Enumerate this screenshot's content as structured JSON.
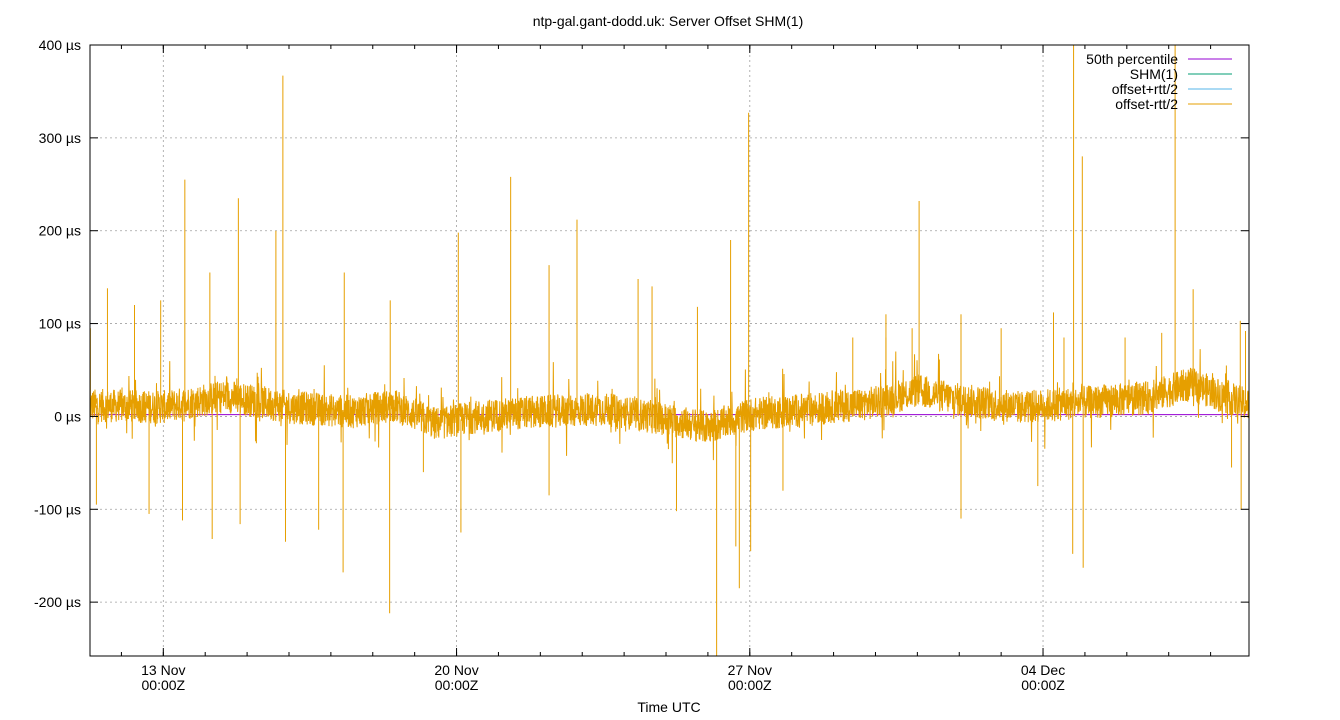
{
  "chart_data": {
    "type": "line",
    "title": "ntp-gal.gant-dodd.uk: Server Offset SHM(1)",
    "xlabel": "Time UTC",
    "ylabel": "",
    "y_unit": "µs",
    "ylim": [
      -258,
      400
    ],
    "yticks": [
      400,
      300,
      200,
      100,
      0,
      -100,
      -200
    ],
    "ytick_labels": [
      "400 µs",
      "300 µs",
      "200 µs",
      "100 µs",
      "0 µs",
      "-100 µs",
      "-200 µs"
    ],
    "xlim": [
      "2023-11-11T06:00Z",
      "2023-12-08T22:00Z"
    ],
    "xticks": [
      {
        "x": "2023-11-13T00:00Z",
        "label1": "13 Nov",
        "label2": "00:00Z"
      },
      {
        "x": "2023-11-20T00:00Z",
        "label1": "20 Nov",
        "label2": "00:00Z"
      },
      {
        "x": "2023-11-27T00:00Z",
        "label1": "27 Nov",
        "label2": "00:00Z"
      },
      {
        "x": "2023-12-04T00:00Z",
        "label1": "04 Dec",
        "label2": "00:00Z"
      }
    ],
    "minor_ticks_per_day": 1,
    "grid": true,
    "legend_position": "top-right",
    "series": [
      {
        "name": "50th percentile",
        "color": "#9400d3",
        "style": "hline",
        "value": 2
      },
      {
        "name": "SHM(1)",
        "color": "#009e73",
        "style": "line",
        "values": []
      },
      {
        "name": "offset+rtt/2",
        "color": "#56b4e9",
        "style": "line",
        "values": []
      },
      {
        "name": "offset-rtt/2",
        "color": "#e69f00",
        "style": "noise",
        "baseline": [
          [
            "2023-11-11T06:00Z",
            12
          ],
          [
            "2023-11-13T00:00Z",
            10
          ],
          [
            "2023-11-14T12:00Z",
            22
          ],
          [
            "2023-11-16T00:00Z",
            10
          ],
          [
            "2023-11-17T12:00Z",
            5
          ],
          [
            "2023-11-18T12:00Z",
            12
          ],
          [
            "2023-11-19T12:00Z",
            -8
          ],
          [
            "2023-11-20T12:00Z",
            0
          ],
          [
            "2023-11-22T00:00Z",
            5
          ],
          [
            "2023-11-23T12:00Z",
            8
          ],
          [
            "2023-11-25T00:00Z",
            -3
          ],
          [
            "2023-11-26T00:00Z",
            -12
          ],
          [
            "2023-11-27T00:00Z",
            2
          ],
          [
            "2023-11-28T12:00Z",
            8
          ],
          [
            "2023-11-30T00:00Z",
            15
          ],
          [
            "2023-12-01T00:00Z",
            28
          ],
          [
            "2023-12-02T00:00Z",
            18
          ],
          [
            "2023-12-03T12:00Z",
            10
          ],
          [
            "2023-12-05T00:00Z",
            15
          ],
          [
            "2023-12-06T12:00Z",
            20
          ],
          [
            "2023-12-07T12:00Z",
            35
          ],
          [
            "2023-12-08T22:00Z",
            12
          ]
        ],
        "band": 18,
        "spikes": [
          [
            "2023-11-11T06:12Z",
            95
          ],
          [
            "2023-11-11T09:40Z",
            -95
          ],
          [
            "2023-11-11T16:00Z",
            138
          ],
          [
            "2023-11-12T07:30Z",
            120
          ],
          [
            "2023-11-12T15:50Z",
            -105
          ],
          [
            "2023-11-12T22:30Z",
            125
          ],
          [
            "2023-11-13T12:20Z",
            255
          ],
          [
            "2023-11-13T11:00Z",
            -112
          ],
          [
            "2023-11-14T02:40Z",
            155
          ],
          [
            "2023-11-14T04:00Z",
            -132
          ],
          [
            "2023-11-14T19:00Z",
            235
          ],
          [
            "2023-11-14T20:00Z",
            -116
          ],
          [
            "2023-11-15T16:30Z",
            200
          ],
          [
            "2023-11-15T20:30Z",
            367
          ],
          [
            "2023-11-15T22:00Z",
            -135
          ],
          [
            "2023-11-16T17:00Z",
            -122
          ],
          [
            "2023-11-17T07:40Z",
            155
          ],
          [
            "2023-11-17T07:00Z",
            -168
          ],
          [
            "2023-11-18T10:00Z",
            125
          ],
          [
            "2023-11-18T09:40Z",
            -212
          ],
          [
            "2023-11-19T05:00Z",
            -60
          ],
          [
            "2023-11-20T01:00Z",
            198
          ],
          [
            "2023-11-20T02:30Z",
            -125
          ],
          [
            "2023-11-21T07:00Z",
            258
          ],
          [
            "2023-11-22T05:00Z",
            163
          ],
          [
            "2023-11-22T05:00Z",
            -85
          ],
          [
            "2023-11-22T21:00Z",
            212
          ],
          [
            "2023-11-24T08:00Z",
            148
          ],
          [
            "2023-11-24T16:00Z",
            140
          ],
          [
            "2023-11-25T06:00Z",
            -102
          ],
          [
            "2023-11-25T18:00Z",
            118
          ],
          [
            "2023-11-26T05:00Z",
            -258
          ],
          [
            "2023-11-26T13:00Z",
            190
          ],
          [
            "2023-11-26T16:00Z",
            -140
          ],
          [
            "2023-11-26T18:00Z",
            -185
          ],
          [
            "2023-11-26T23:20Z",
            327
          ],
          [
            "2023-11-27T00:30Z",
            -145
          ],
          [
            "2023-11-27T19:00Z",
            -80
          ],
          [
            "2023-11-29T11:00Z",
            85
          ],
          [
            "2023-11-30T06:00Z",
            110
          ],
          [
            "2023-11-30T06:00Z",
            85
          ],
          [
            "2023-11-30T21:00Z",
            95
          ],
          [
            "2023-12-01T01:00Z",
            232
          ],
          [
            "2023-12-02T01:00Z",
            110
          ],
          [
            "2023-12-02T01:00Z",
            -110
          ],
          [
            "2023-12-03T00:00Z",
            95
          ],
          [
            "2023-12-03T21:00Z",
            -75
          ],
          [
            "2023-12-04T06:00Z",
            112
          ],
          [
            "2023-12-04T12:00Z",
            85
          ],
          [
            "2023-12-04T17:00Z",
            -148
          ],
          [
            "2023-12-04T17:30Z",
            400
          ],
          [
            "2023-12-04T22:30Z",
            280
          ],
          [
            "2023-12-04T23:00Z",
            -163
          ],
          [
            "2023-12-05T23:00Z",
            85
          ],
          [
            "2023-12-06T20:00Z",
            90
          ],
          [
            "2023-12-07T03:40Z",
            400
          ],
          [
            "2023-12-07T14:00Z",
            137
          ],
          [
            "2023-12-08T12:00Z",
            -55
          ],
          [
            "2023-12-08T17:00Z",
            103
          ],
          [
            "2023-12-08T17:30Z",
            -100
          ],
          [
            "2023-12-08T20:00Z",
            92
          ]
        ]
      }
    ]
  }
}
